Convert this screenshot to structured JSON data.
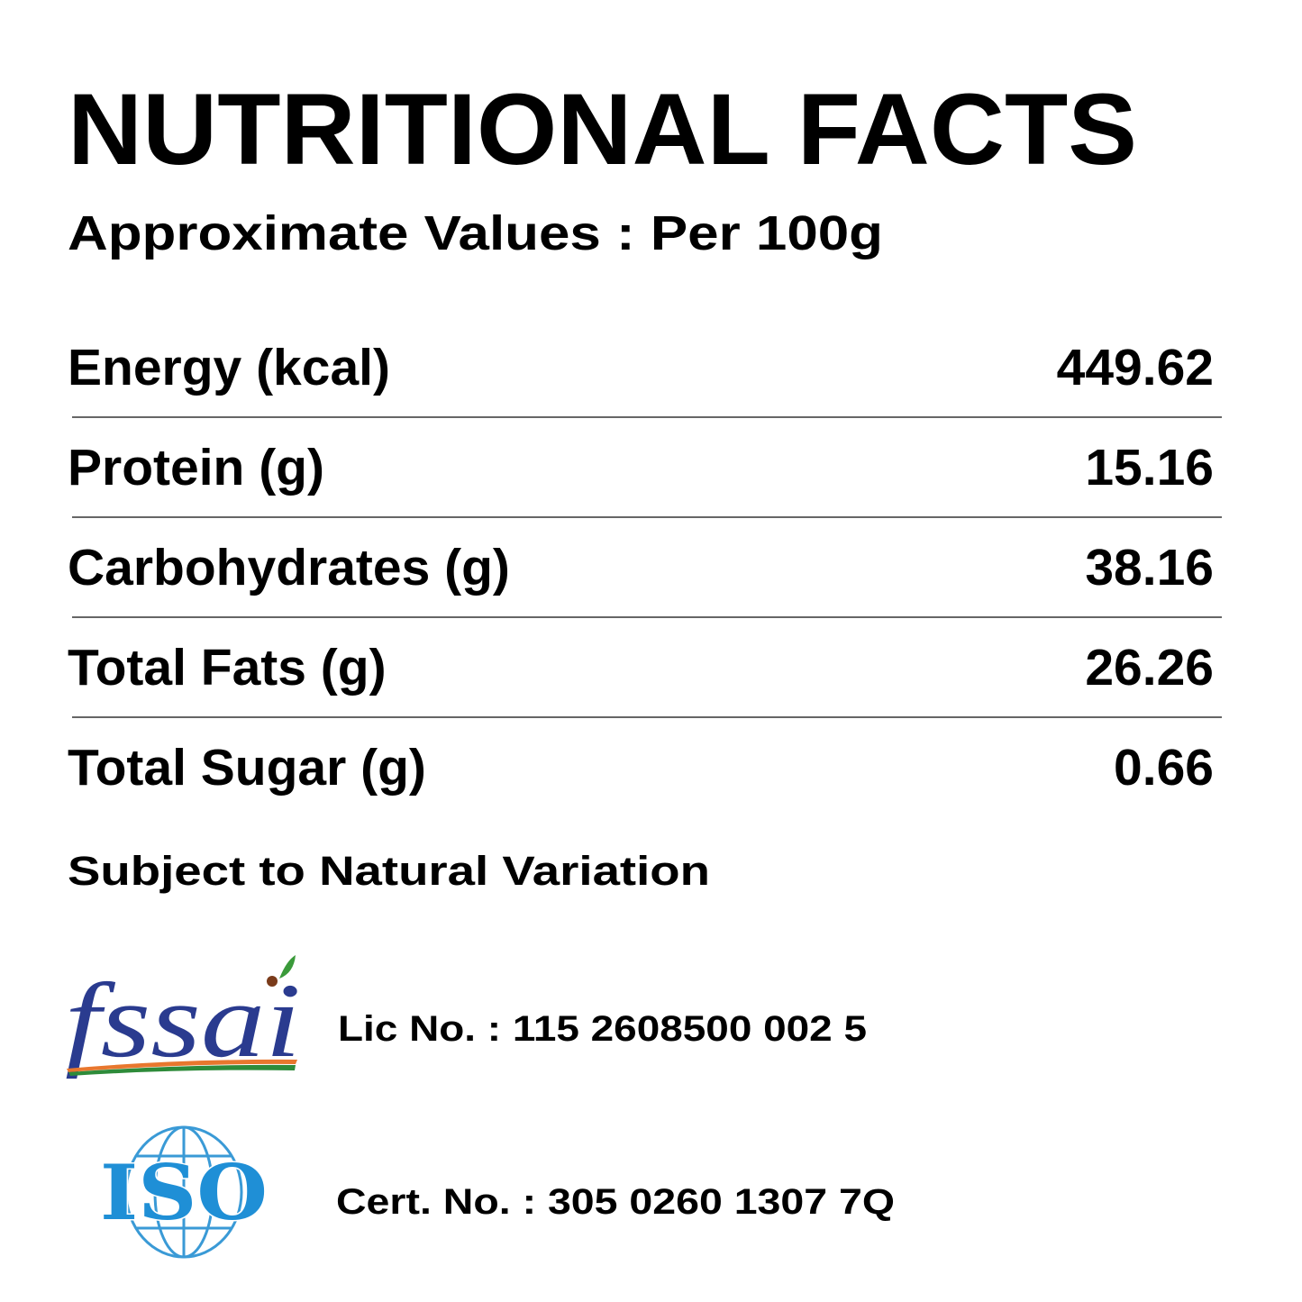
{
  "header": {
    "title": "NUTRITIONAL FACTS",
    "subtitle": "Approximate Values : Per 100g"
  },
  "table": {
    "rows": [
      [
        "Energy (kcal)",
        "449.62"
      ],
      [
        "Protein (g)",
        "15.16"
      ],
      [
        "Carbohydrates (g)",
        "38.16"
      ],
      [
        "Total Fats (g)",
        "26.26"
      ],
      [
        "Total Sugar (g)",
        "0.66"
      ]
    ]
  },
  "note": "Subject to Natural Variation",
  "certifications": [
    {
      "logo": "fssai",
      "text": "Lic No. : 115 2608500 002 5"
    },
    {
      "logo": "ISO",
      "text": "Cert. No. : 305 0260 1307 7Q"
    }
  ]
}
